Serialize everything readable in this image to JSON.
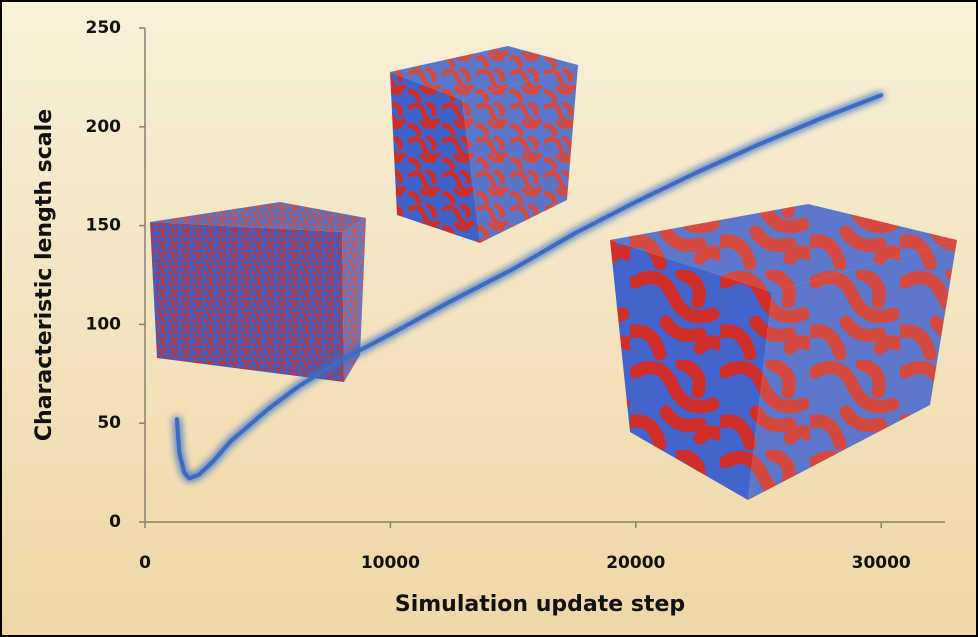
{
  "chart_data": {
    "type": "line",
    "x_label": "Simulation update step",
    "y_label": "Characteristic length scale",
    "x": [
      1300,
      1400,
      1600,
      1800,
      2200,
      2800,
      3500,
      5000,
      6300,
      8000,
      10000,
      12500,
      15000,
      17500,
      20000,
      22500,
      25000,
      27500,
      30000
    ],
    "series": [
      {
        "name": "Characteristic length scale",
        "color": "#3a6cc4",
        "values": [
          52,
          35,
          25,
          22,
          24,
          31,
          41,
          57,
          69,
          82,
          95,
          112,
          128,
          146,
          162,
          177,
          191,
          204,
          216
        ]
      }
    ],
    "xlim": [
      0,
      32600
    ],
    "ylim": [
      0,
      250
    ],
    "xticks": [
      0,
      10000,
      20000,
      30000
    ],
    "yticks": [
      0,
      50,
      100,
      150,
      200,
      250
    ]
  }
}
